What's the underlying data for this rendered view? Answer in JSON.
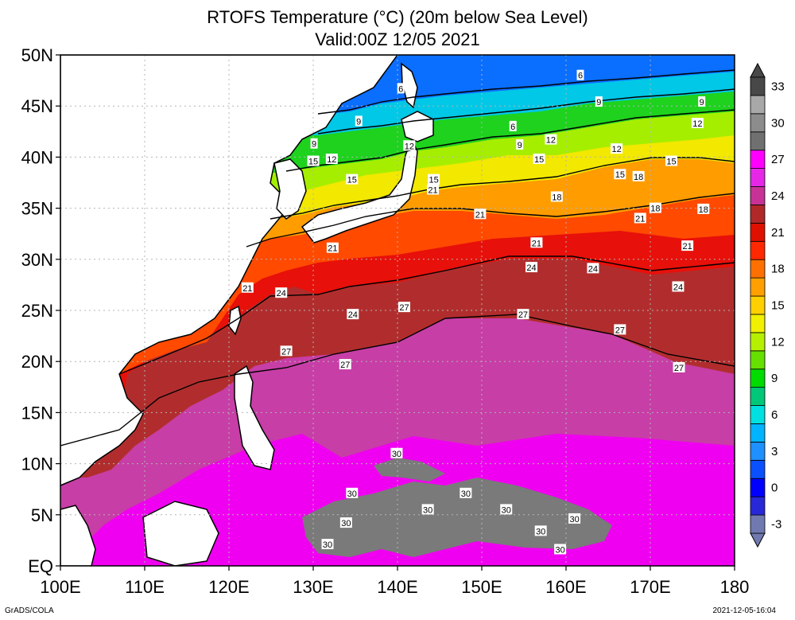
{
  "title": {
    "line1": "RTOFS Temperature (°C) (20m below Sea Level)",
    "line2": "Valid:00Z 12/05 2021"
  },
  "axes": {
    "lon_labels": [
      "100E",
      "110E",
      "120E",
      "130E",
      "140E",
      "150E",
      "160E",
      "170E",
      "180"
    ],
    "lat_labels": [
      "EQ",
      "5N",
      "10N",
      "15N",
      "20N",
      "25N",
      "30N",
      "35N",
      "40N",
      "45N",
      "50N"
    ],
    "lon_range": [
      100,
      180
    ],
    "lat_range": [
      0,
      50
    ]
  },
  "colorbar": {
    "labels": [
      "-3",
      "0",
      "3",
      "6",
      "9",
      "12",
      "15",
      "18",
      "21",
      "24",
      "27",
      "30",
      "33"
    ],
    "colors": [
      "#707ab0",
      "#2828d8",
      "#0000ff",
      "#0a50ff",
      "#1e90ff",
      "#00b4ff",
      "#00e0e0",
      "#00c878",
      "#00dc00",
      "#66e000",
      "#b4f000",
      "#f0f000",
      "#ffd000",
      "#ffa000",
      "#ff7000",
      "#ff2800",
      "#e01000",
      "#b02828",
      "#c83296",
      "#e628e6",
      "#ff00ff",
      "#707070",
      "#8c8c8c",
      "#a8a8a8",
      "#484848"
    ]
  },
  "contour_labels": [
    {
      "text": "6",
      "lon": 140.4,
      "lat": 46.7
    },
    {
      "text": "6",
      "lon": 153.7,
      "lat": 43.0
    },
    {
      "text": "6",
      "lon": 161.7,
      "lat": 48.0
    },
    {
      "text": "9",
      "lon": 130.1,
      "lat": 41.3
    },
    {
      "text": "9",
      "lon": 135.4,
      "lat": 43.5
    },
    {
      "text": "9",
      "lon": 154.5,
      "lat": 41.2
    },
    {
      "text": "9",
      "lon": 163.9,
      "lat": 45.4
    },
    {
      "text": "9",
      "lon": 176.1,
      "lat": 45.4
    },
    {
      "text": "12",
      "lon": 132.2,
      "lat": 39.8
    },
    {
      "text": "12",
      "lon": 141.4,
      "lat": 41.1
    },
    {
      "text": "12",
      "lon": 158.2,
      "lat": 41.7
    },
    {
      "text": "12",
      "lon": 166.0,
      "lat": 40.8
    },
    {
      "text": "12",
      "lon": 175.6,
      "lat": 43.3
    },
    {
      "text": "15",
      "lon": 130.0,
      "lat": 39.6
    },
    {
      "text": "15",
      "lon": 134.6,
      "lat": 37.8
    },
    {
      "text": "15",
      "lon": 144.3,
      "lat": 37.8
    },
    {
      "text": "15",
      "lon": 156.8,
      "lat": 39.8
    },
    {
      "text": "15",
      "lon": 166.4,
      "lat": 38.3
    },
    {
      "text": "15",
      "lon": 172.5,
      "lat": 39.6
    },
    {
      "text": "18",
      "lon": 158.9,
      "lat": 36.1
    },
    {
      "text": "18",
      "lon": 168.6,
      "lat": 38.1
    },
    {
      "text": "18",
      "lon": 170.6,
      "lat": 35.0
    },
    {
      "text": "18",
      "lon": 176.3,
      "lat": 34.9
    },
    {
      "text": "21",
      "lon": 144.2,
      "lat": 36.8
    },
    {
      "text": "21",
      "lon": 149.8,
      "lat": 34.4
    },
    {
      "text": "21",
      "lon": 156.5,
      "lat": 31.6
    },
    {
      "text": "21",
      "lon": 168.8,
      "lat": 34.0
    },
    {
      "text": "21",
      "lon": 174.4,
      "lat": 31.3
    },
    {
      "text": "21",
      "lon": 132.3,
      "lat": 31.1
    },
    {
      "text": "21",
      "lon": 122.2,
      "lat": 27.2
    },
    {
      "text": "24",
      "lon": 126.2,
      "lat": 26.7
    },
    {
      "text": "24",
      "lon": 134.7,
      "lat": 24.6
    },
    {
      "text": "24",
      "lon": 155.9,
      "lat": 29.2
    },
    {
      "text": "24",
      "lon": 163.2,
      "lat": 29.1
    },
    {
      "text": "24",
      "lon": 173.3,
      "lat": 27.3
    },
    {
      "text": "27",
      "lon": 140.8,
      "lat": 25.3
    },
    {
      "text": "27",
      "lon": 154.9,
      "lat": 24.6
    },
    {
      "text": "27",
      "lon": 166.4,
      "lat": 23.1
    },
    {
      "text": "27",
      "lon": 126.8,
      "lat": 21.0
    },
    {
      "text": "27",
      "lon": 133.8,
      "lat": 19.7
    },
    {
      "text": "27",
      "lon": 173.4,
      "lat": 19.4
    },
    {
      "text": "30",
      "lon": 139.9,
      "lat": 11.0
    },
    {
      "text": "30",
      "lon": 134.6,
      "lat": 7.1
    },
    {
      "text": "30",
      "lon": 143.6,
      "lat": 5.5
    },
    {
      "text": "30",
      "lon": 148.1,
      "lat": 7.1
    },
    {
      "text": "30",
      "lon": 152.9,
      "lat": 5.5
    },
    {
      "text": "30",
      "lon": 161.0,
      "lat": 4.6
    },
    {
      "text": "30",
      "lon": 133.9,
      "lat": 4.2
    },
    {
      "text": "30",
      "lon": 157.0,
      "lat": 3.4
    },
    {
      "text": "30",
      "lon": 159.3,
      "lat": 1.6
    },
    {
      "text": "30",
      "lon": 131.7,
      "lat": 2.1
    }
  ],
  "footer": {
    "left": "GrADS/COLA",
    "right": "2021-12-05-16:04"
  }
}
